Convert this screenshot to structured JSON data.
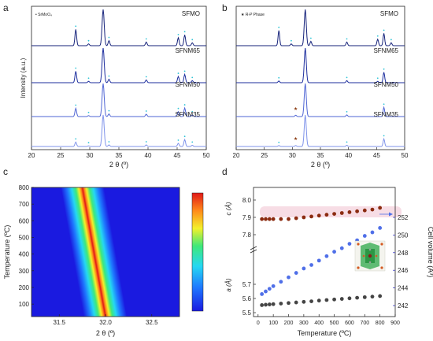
{
  "colors": {
    "sfmo": "#14217a",
    "sfnm65": "#1d2e9e",
    "sfnm50": "#4f65d4",
    "sfnm35": "#7f93ea",
    "marker_cyan": "#2ec4d6",
    "marker_rp": "#8b3a10",
    "c_axis": "#b22222",
    "a_axis": "#333333",
    "vol_axis": "#2222bb",
    "c_points": "#8b2b10",
    "a_points": "#444444",
    "vol_points": "#4f6fe8",
    "c_band": "#f2c6d4"
  },
  "chart_data": [
    {
      "panel": "a",
      "type": "line",
      "xlabel": "2 θ (º)",
      "ylabel": "Intensity (a.u.)",
      "xlim": [
        20,
        50
      ],
      "xticks": [
        "20",
        "25",
        "30",
        "35",
        "40",
        "45",
        "50"
      ],
      "legend": "• SrMoO₄",
      "series": [
        {
          "name": "SFMO",
          "peaks": [
            [
              27.6,
              0.45
            ],
            [
              29.8,
              0.05
            ],
            [
              32.3,
              1.0
            ],
            [
              33.3,
              0.14
            ],
            [
              39.7,
              0.1
            ],
            [
              45.2,
              0.22
            ],
            [
              46.3,
              0.3
            ],
            [
              47.6,
              0.08
            ]
          ]
        },
        {
          "name": "SFNM65",
          "peaks": [
            [
              27.6,
              0.33
            ],
            [
              29.8,
              0.04
            ],
            [
              32.3,
              1.0
            ],
            [
              33.3,
              0.1
            ],
            [
              39.7,
              0.08
            ],
            [
              45.2,
              0.18
            ],
            [
              46.3,
              0.24
            ],
            [
              47.6,
              0.06
            ]
          ]
        },
        {
          "name": "SFNM50",
          "peaks": [
            [
              27.6,
              0.25
            ],
            [
              29.8,
              0.03
            ],
            [
              32.3,
              1.0
            ],
            [
              33.3,
              0.08
            ],
            [
              39.7,
              0.07
            ],
            [
              45.2,
              0.15
            ],
            [
              46.3,
              0.26
            ],
            [
              47.6,
              0.05
            ]
          ]
        },
        {
          "name": "SFNM35",
          "peaks": [
            [
              27.6,
              0.14
            ],
            [
              29.8,
              0.02
            ],
            [
              32.3,
              1.0
            ],
            [
              33.3,
              0.05
            ],
            [
              39.7,
              0.05
            ],
            [
              45.2,
              0.1
            ],
            [
              46.3,
              0.22
            ],
            [
              47.6,
              0.04
            ]
          ]
        }
      ]
    },
    {
      "panel": "b",
      "type": "line",
      "xlabel": "2 θ (º)",
      "ylabel": "",
      "xlim": [
        20,
        50
      ],
      "xticks": [
        "20",
        "25",
        "30",
        "35",
        "40",
        "45",
        "50"
      ],
      "legend": "★ R-P Phase",
      "series": [
        {
          "name": "SFMO",
          "peaks": [
            [
              27.6,
              0.42
            ],
            [
              29.8,
              0.05
            ],
            [
              32.3,
              1.0
            ],
            [
              33.3,
              0.12
            ],
            [
              39.7,
              0.1
            ],
            [
              45.2,
              0.18
            ],
            [
              46.3,
              0.34
            ],
            [
              47.6,
              0.08
            ]
          ]
        },
        {
          "name": "SFNM65",
          "peaks": [
            [
              27.6,
              0.05
            ],
            [
              32.3,
              1.0
            ],
            [
              39.7,
              0.06
            ],
            [
              45.2,
              0.04
            ],
            [
              46.3,
              0.3
            ]
          ]
        },
        {
          "name": "SFNM50",
          "peaks": [
            [
              30.6,
              0.04
            ],
            [
              32.3,
              1.0
            ],
            [
              39.7,
              0.05
            ],
            [
              46.3,
              0.28
            ]
          ]
        },
        {
          "name": "SFNM35",
          "peaks": [
            [
              27.6,
              0.03
            ],
            [
              30.6,
              0.03
            ],
            [
              32.3,
              1.0
            ],
            [
              39.7,
              0.04
            ],
            [
              46.3,
              0.24
            ]
          ]
        }
      ]
    },
    {
      "panel": "c",
      "type": "heatmap",
      "xlabel": "2 θ (º)",
      "ylabel": "Temperature (ºC)",
      "xlim": [
        31.2,
        32.8
      ],
      "ylim": [
        25,
        800
      ],
      "xticks": [
        "31.5",
        "32.0",
        "32.5"
      ],
      "yticks": [
        "100",
        "200",
        "300",
        "400",
        "500",
        "600",
        "700",
        "800"
      ],
      "peak_center": [
        [
          25,
          32.0
        ],
        [
          800,
          31.75
        ]
      ],
      "peak_width": 0.09
    },
    {
      "panel": "d",
      "type": "scatter",
      "xlabel": "Temperature (ºC)",
      "ylabel_left_top": "c (Å)",
      "ylabel_left_bottom": "a (Å)",
      "ylabel_right": "Cell volume (Å³)",
      "xlim": [
        -30,
        900
      ],
      "xticks": [
        "0",
        "100",
        "200",
        "300",
        "400",
        "500",
        "600",
        "700",
        "800",
        "900"
      ],
      "y_left_ticks": [
        "5.5",
        "5.6",
        "5.7",
        "7.8",
        "7.9",
        "8.0"
      ],
      "y_right_ticks": [
        "242",
        "244",
        "246",
        "248",
        "250",
        "252"
      ],
      "temperatures": [
        25,
        50,
        75,
        100,
        150,
        200,
        250,
        300,
        350,
        400,
        450,
        500,
        550,
        600,
        650,
        700,
        750,
        800
      ],
      "c_values": [
        7.89,
        7.89,
        7.89,
        7.89,
        7.89,
        7.89,
        7.895,
        7.9,
        7.905,
        7.91,
        7.915,
        7.92,
        7.925,
        7.93,
        7.935,
        7.94,
        7.945,
        7.955
      ],
      "a_values": [
        5.553,
        5.556,
        5.558,
        5.56,
        5.564,
        5.568,
        5.572,
        5.576,
        5.58,
        5.585,
        5.589,
        5.593,
        5.597,
        5.601,
        5.605,
        5.609,
        5.613,
        5.617
      ],
      "volume_values": [
        243.3,
        243.6,
        243.9,
        244.2,
        244.7,
        245.2,
        245.7,
        246.2,
        246.6,
        247.1,
        247.6,
        248.1,
        248.5,
        249.0,
        249.4,
        249.9,
        250.3,
        250.8
      ]
    }
  ],
  "labels": {
    "panel_a": "a",
    "panel_b": "b",
    "panel_c": "c",
    "panel_d": "d"
  }
}
